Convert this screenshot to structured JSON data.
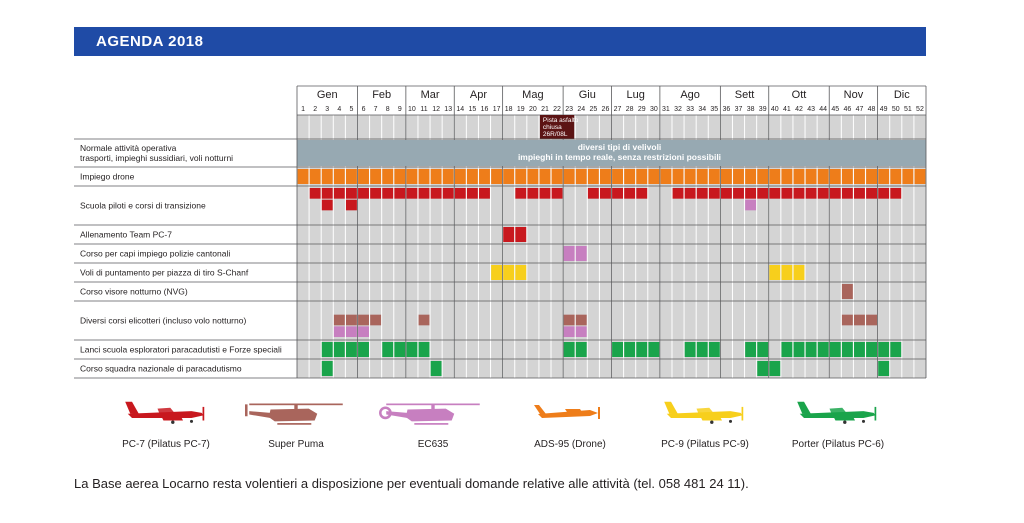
{
  "header": {
    "title": "AGENDA 2018"
  },
  "colors": {
    "grid_bg": "#d4d4d4",
    "grid_line": "#ffffff",
    "frame": "#58595b",
    "pc7": "#c8181e",
    "superpuma": "#a9655c",
    "ec635": "#c77fc0",
    "drone": "#ee7d1a",
    "pc9": "#f7cf1c",
    "porter": "#1aa44b",
    "normal_bar": "#97a9b2",
    "runway": "#5c1414",
    "header_bg": "#1f4ba6"
  },
  "chart_data": {
    "type": "table",
    "title": "AGENDA 2018",
    "weeks": 52,
    "months": [
      {
        "label": "Gen",
        "start": 1,
        "end": 5
      },
      {
        "label": "Feb",
        "start": 6,
        "end": 9
      },
      {
        "label": "Mar",
        "start": 10,
        "end": 13
      },
      {
        "label": "Apr",
        "start": 14,
        "end": 17
      },
      {
        "label": "Mag",
        "start": 18,
        "end": 22
      },
      {
        "label": "Giu",
        "start": 23,
        "end": 26
      },
      {
        "label": "Lug",
        "start": 27,
        "end": 30
      },
      {
        "label": "Ago",
        "start": 31,
        "end": 35
      },
      {
        "label": "Sett",
        "start": 36,
        "end": 39
      },
      {
        "label": "Ott",
        "start": 40,
        "end": 44
      },
      {
        "label": "Nov",
        "start": 45,
        "end": 48
      },
      {
        "label": "Dic",
        "start": 49,
        "end": 52
      }
    ],
    "runway_note": {
      "lines": [
        "Pista asfalto",
        "chiusa",
        "26R/08L"
      ],
      "start": 21,
      "end": 23
    },
    "rows": [
      {
        "label": "Normale attività operativa\ntrasporti, impieghi sussidiari, voli notturni",
        "lines": 2,
        "banner": {
          "start": 1,
          "end": 52,
          "aircraft": "normal",
          "text": [
            "diversi tipi di velivoli",
            "impieghi in tempo reale, senza restrizioni possibili"
          ]
        },
        "sublines": []
      },
      {
        "label": "Impiego drone",
        "lines": 1,
        "sublines": [
          [
            {
              "start": 1,
              "end": 52,
              "aircraft": "drone"
            }
          ]
        ]
      },
      {
        "label": "Scuola piloti e corsi di transizione",
        "lines": 3,
        "sublines": [
          [
            {
              "start": 2,
              "end": 16,
              "aircraft": "pc7"
            },
            {
              "start": 19,
              "end": 22,
              "aircraft": "pc7"
            },
            {
              "start": 25,
              "end": 29,
              "aircraft": "pc7"
            },
            {
              "start": 32,
              "end": 50,
              "aircraft": "pc7"
            }
          ],
          [
            {
              "start": 3,
              "end": 3,
              "aircraft": "pc7"
            },
            {
              "start": 5,
              "end": 5,
              "aircraft": "pc7"
            },
            {
              "start": 38,
              "end": 38,
              "aircraft": "ec635"
            }
          ],
          []
        ]
      },
      {
        "label": "Allenamento Team PC-7",
        "lines": 1,
        "sublines": [
          [
            {
              "start": 18,
              "end": 19,
              "aircraft": "pc7"
            }
          ]
        ]
      },
      {
        "label": "Corso per capi impiego polizie cantonali",
        "lines": 1,
        "sublines": [
          [
            {
              "start": 23,
              "end": 24,
              "aircraft": "ec635"
            }
          ]
        ]
      },
      {
        "label": "Voli di puntamento per piazza di tiro S-Chanf",
        "lines": 1,
        "sublines": [
          [
            {
              "start": 17,
              "end": 19,
              "aircraft": "pc9"
            },
            {
              "start": 40,
              "end": 42,
              "aircraft": "pc9"
            }
          ]
        ]
      },
      {
        "label": "Corso visore notturno (NVG)",
        "lines": 1,
        "sublines": [
          [
            {
              "start": 46,
              "end": 46,
              "aircraft": "superpuma"
            }
          ]
        ]
      },
      {
        "label": "Diversi corsi elicotteri (incluso volo notturno)",
        "lines": 3,
        "sublines": [
          [],
          [
            {
              "start": 4,
              "end": 7,
              "aircraft": "superpuma"
            },
            {
              "start": 11,
              "end": 11,
              "aircraft": "superpuma"
            },
            {
              "start": 23,
              "end": 24,
              "aircraft": "superpuma"
            },
            {
              "start": 46,
              "end": 48,
              "aircraft": "superpuma"
            }
          ],
          [
            {
              "start": 4,
              "end": 6,
              "aircraft": "ec635"
            },
            {
              "start": 23,
              "end": 24,
              "aircraft": "ec635"
            }
          ]
        ]
      },
      {
        "label": "Lanci scuola esploratori paracadutisti e Forze speciali",
        "lines": 1,
        "sublines": [
          [
            {
              "start": 3,
              "end": 6,
              "aircraft": "porter"
            },
            {
              "start": 8,
              "end": 11,
              "aircraft": "porter"
            },
            {
              "start": 23,
              "end": 24,
              "aircraft": "porter"
            },
            {
              "start": 27,
              "end": 30,
              "aircraft": "porter"
            },
            {
              "start": 33,
              "end": 35,
              "aircraft": "porter"
            },
            {
              "start": 38,
              "end": 39,
              "aircraft": "porter"
            },
            {
              "start": 41,
              "end": 50,
              "aircraft": "porter"
            }
          ]
        ]
      },
      {
        "label": "Corso squadra nazionale di paracadutismo",
        "lines": 1,
        "sublines": [
          [
            {
              "start": 3,
              "end": 3,
              "aircraft": "porter"
            },
            {
              "start": 12,
              "end": 12,
              "aircraft": "porter"
            },
            {
              "start": 39,
              "end": 40,
              "aircraft": "porter"
            },
            {
              "start": 49,
              "end": 49,
              "aircraft": "porter"
            }
          ]
        ]
      }
    ],
    "legend": [
      {
        "key": "pc7",
        "label": "PC-7 (Pilatus PC-7)",
        "icon": "prop-plane-icon"
      },
      {
        "key": "superpuma",
        "label": "Super Puma",
        "icon": "helicopter-icon"
      },
      {
        "key": "ec635",
        "label": "EC635",
        "icon": "helicopter-icon"
      },
      {
        "key": "drone",
        "label": "ADS-95 (Drone)",
        "icon": "drone-icon"
      },
      {
        "key": "pc9",
        "label": "PC-9 (Pilatus PC-9)",
        "icon": "prop-plane-icon"
      },
      {
        "key": "porter",
        "label": "Porter (Pilatus PC-6)",
        "icon": "porter-plane-icon"
      }
    ]
  },
  "footer": {
    "text": "La Base aerea Locarno resta volentieri a disposizione per eventuali domande relative alle attività (tel. 058 481 24 11)."
  }
}
